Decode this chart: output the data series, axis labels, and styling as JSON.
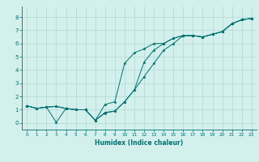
{
  "xlabel": "Humidex (Indice chaleur)",
  "ylabel": "",
  "bg_color": "#d4f0ec",
  "grid_color": "#b0d8d4",
  "line_color": "#007070",
  "xlim": [
    -0.5,
    23.5
  ],
  "ylim": [
    -0.5,
    8.8
  ],
  "xticks": [
    0,
    1,
    2,
    3,
    4,
    5,
    6,
    7,
    8,
    9,
    10,
    11,
    12,
    13,
    14,
    15,
    16,
    17,
    18,
    19,
    20,
    21,
    22,
    23
  ],
  "yticks": [
    0,
    1,
    2,
    3,
    4,
    5,
    6,
    7,
    8
  ],
  "line1_x": [
    0,
    1,
    2,
    3,
    4,
    5,
    6,
    7,
    8,
    9,
    10,
    11,
    12,
    13,
    14,
    15,
    16,
    17,
    18,
    19,
    20,
    21,
    22,
    23
  ],
  "line1_y": [
    1.3,
    1.1,
    1.2,
    1.25,
    1.1,
    1.0,
    1.0,
    0.2,
    1.4,
    1.6,
    4.5,
    5.3,
    5.6,
    6.0,
    6.0,
    6.4,
    6.6,
    6.6,
    6.5,
    6.7,
    6.9,
    7.5,
    7.8,
    7.9
  ],
  "line2_x": [
    0,
    1,
    2,
    3,
    4,
    5,
    6,
    7,
    8,
    9,
    10,
    11,
    12,
    13,
    14,
    15,
    16,
    17,
    18,
    19,
    20,
    21,
    22,
    23
  ],
  "line2_y": [
    1.3,
    1.1,
    1.2,
    0.05,
    1.1,
    1.0,
    1.0,
    0.2,
    0.8,
    0.9,
    1.6,
    2.5,
    3.5,
    4.5,
    5.5,
    6.0,
    6.6,
    6.6,
    6.5,
    6.7,
    6.9,
    7.5,
    7.8,
    7.9
  ],
  "line3_x": [
    0,
    1,
    2,
    3,
    4,
    5,
    6,
    7,
    8,
    9,
    10,
    11,
    12,
    13,
    14,
    15,
    16,
    17,
    18,
    19,
    20,
    21,
    22,
    23
  ],
  "line3_y": [
    1.3,
    1.1,
    1.2,
    1.25,
    1.1,
    1.0,
    1.0,
    0.2,
    0.75,
    0.9,
    1.6,
    2.5,
    4.6,
    5.5,
    6.0,
    6.4,
    6.6,
    6.6,
    6.5,
    6.7,
    6.9,
    7.5,
    7.8,
    7.9
  ],
  "tick_fontsize_x": 4.2,
  "tick_fontsize_y": 5.0,
  "xlabel_fontsize": 5.5,
  "linewidth": 0.7,
  "markersize": 2.5
}
